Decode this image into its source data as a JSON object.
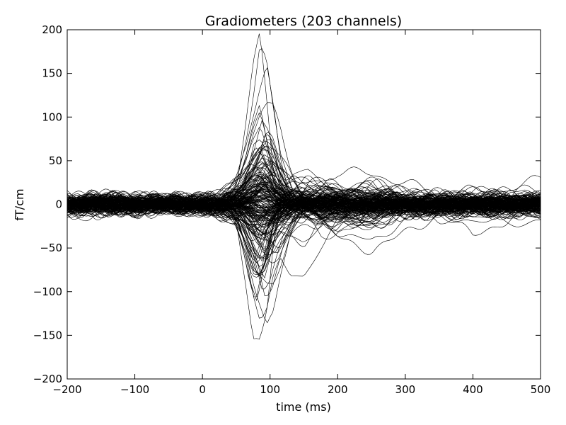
{
  "chart_data": {
    "type": "line",
    "title": "Gradiometers (203 channels)",
    "xlabel": "time (ms)",
    "ylabel": "fT/cm",
    "xlim": [
      -200,
      500
    ],
    "ylim": [
      -200,
      200
    ],
    "x_ticks": [
      -200,
      -100,
      0,
      100,
      200,
      300,
      400,
      500
    ],
    "x_tick_labels": [
      "−200",
      "−100",
      "0",
      "100",
      "200",
      "300",
      "400",
      "500"
    ],
    "y_ticks": [
      -200,
      -150,
      -100,
      -50,
      0,
      50,
      100,
      150,
      200
    ],
    "y_tick_labels": [
      "−200",
      "−150",
      "−100",
      "−50",
      "0",
      "50",
      "100",
      "150",
      "200"
    ],
    "grid": false,
    "line_color": "#000000",
    "series_count": 203,
    "x": [
      -200,
      -150,
      -100,
      -50,
      0,
      25,
      50,
      65,
      75,
      85,
      95,
      105,
      115,
      130,
      150,
      175,
      200,
      250,
      300,
      350,
      400,
      450,
      500
    ],
    "series": [
      {
        "values": [
          0,
          2,
          -2,
          1,
          0,
          5,
          20,
          90,
          150,
          190,
          120,
          40,
          0,
          -10,
          -20,
          -10,
          0,
          5,
          0,
          3,
          -2,
          0,
          0
        ]
      },
      {
        "values": [
          0,
          -3,
          2,
          -1,
          2,
          -5,
          -25,
          -90,
          -150,
          -155,
          -120,
          -40,
          0,
          10,
          5,
          0,
          0,
          -5,
          0,
          0,
          3,
          0,
          0
        ]
      },
      {
        "values": [
          0,
          5,
          0,
          3,
          5,
          10,
          30,
          80,
          120,
          175,
          160,
          110,
          60,
          20,
          -20,
          -40,
          -30,
          -20,
          -10,
          -5,
          0,
          0,
          0
        ]
      },
      {
        "values": [
          0,
          -2,
          3,
          -2,
          0,
          -10,
          -30,
          -60,
          -100,
          -130,
          -120,
          -80,
          -60,
          -80,
          -80,
          -50,
          -20,
          -10,
          -5,
          0,
          0,
          0,
          0
        ]
      },
      {
        "values": [
          0,
          2,
          1,
          0,
          10,
          15,
          30,
          50,
          80,
          100,
          110,
          110,
          90,
          40,
          0,
          -20,
          -30,
          -40,
          -20,
          -10,
          -5,
          0,
          0
        ]
      },
      {
        "values": [
          0,
          1,
          -1,
          2,
          -5,
          -10,
          -20,
          -40,
          -70,
          -90,
          -100,
          -95,
          -70,
          -30,
          0,
          10,
          15,
          10,
          5,
          0,
          0,
          0,
          0
        ]
      },
      {
        "values": [
          0,
          3,
          2,
          1,
          0,
          5,
          15,
          40,
          60,
          70,
          60,
          40,
          20,
          0,
          -10,
          -5,
          0,
          30,
          20,
          10,
          0,
          5,
          0
        ]
      },
      {
        "values": [
          0,
          -2,
          -1,
          0,
          2,
          -5,
          -15,
          -30,
          -45,
          -60,
          -70,
          -60,
          -40,
          -20,
          -10,
          -30,
          -40,
          -50,
          -30,
          -10,
          -40,
          -20,
          0
        ]
      },
      {
        "values": [
          0,
          1,
          0,
          -1,
          0,
          3,
          10,
          20,
          30,
          40,
          35,
          25,
          15,
          10,
          20,
          30,
          40,
          35,
          20,
          10,
          15,
          20,
          30
        ]
      },
      {
        "values": [
          0,
          -1,
          2,
          -2,
          -3,
          -5,
          -10,
          -20,
          -30,
          -35,
          -30,
          -20,
          -10,
          -5,
          0,
          -20,
          -30,
          -10,
          0,
          -20,
          -10,
          -15,
          -20
        ]
      },
      {
        "values": [
          5,
          10,
          -5,
          5,
          0,
          10,
          25,
          60,
          100,
          140,
          170,
          120,
          60,
          10,
          -10,
          0,
          5,
          0,
          0,
          0,
          0,
          0,
          0
        ]
      },
      {
        "values": [
          -5,
          -10,
          5,
          -5,
          0,
          -8,
          -20,
          -50,
          -80,
          -110,
          -140,
          -130,
          -90,
          -40,
          -10,
          0,
          0,
          0,
          0,
          0,
          0,
          0,
          0
        ]
      }
    ]
  }
}
